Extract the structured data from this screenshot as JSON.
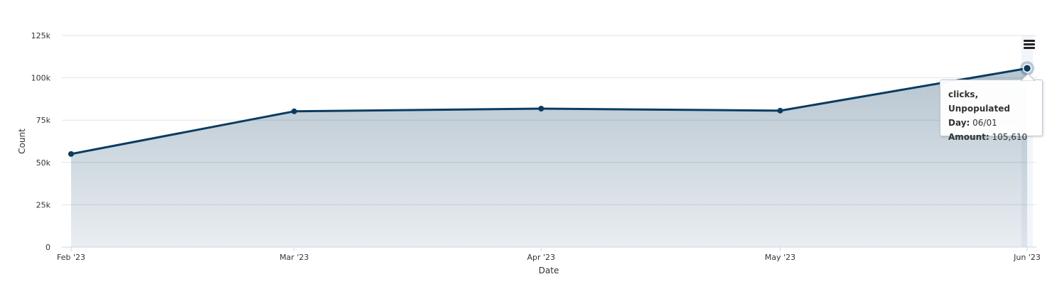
{
  "chart_data": {
    "type": "area",
    "xlabel": "Date",
    "ylabel": "Count",
    "y_ticks": [
      "0",
      "25k",
      "50k",
      "75k",
      "100k",
      "125k"
    ],
    "ylim": [
      0,
      125000
    ],
    "x_ticks": [
      "Feb '23",
      "Mar '23",
      "Apr '23",
      "May '23",
      "Jun '23"
    ],
    "x": [
      "2023-02-01",
      "2023-03-01",
      "2023-04-01",
      "2023-05-01",
      "2023-06-01"
    ],
    "series": [
      {
        "values": [
          55000,
          80200,
          81800,
          80600,
          105610
        ],
        "color": "#0b3c61"
      }
    ],
    "grid": true
  },
  "tooltip": {
    "title": "clicks, Unpopulated",
    "day_label": "Day:",
    "day_value": "06/01",
    "amount_label": "Amount:",
    "amount_value": "105,610"
  },
  "menu": {
    "icon": "hamburger-menu-icon"
  }
}
